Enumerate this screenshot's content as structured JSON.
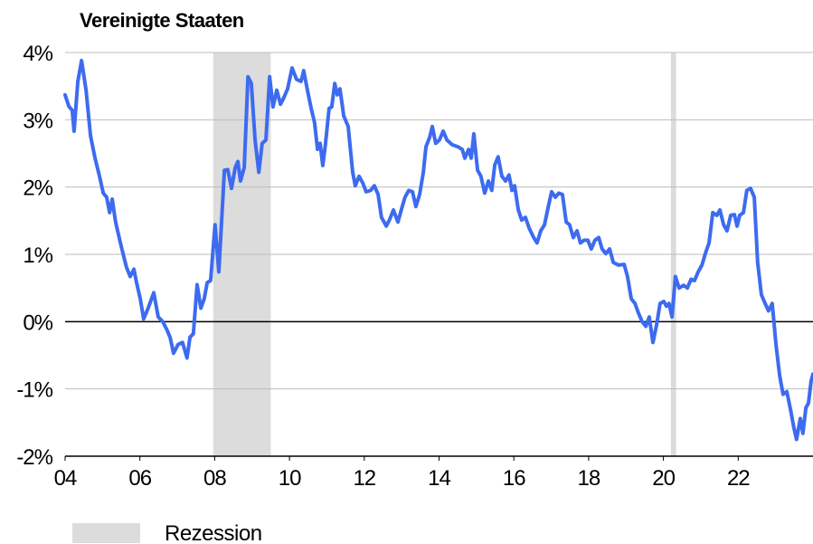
{
  "chart_data": {
    "type": "line",
    "title": "Vereinigte Staaten",
    "xlim": [
      2004,
      2024
    ],
    "ylim": [
      -2,
      4
    ],
    "xticks": [
      {
        "value": 2004,
        "label": "04"
      },
      {
        "value": 2006,
        "label": "06"
      },
      {
        "value": 2008,
        "label": "08"
      },
      {
        "value": 2010,
        "label": "10"
      },
      {
        "value": 2012,
        "label": "12"
      },
      {
        "value": 2014,
        "label": "14"
      },
      {
        "value": 2016,
        "label": "16"
      },
      {
        "value": 2018,
        "label": "18"
      },
      {
        "value": 2020,
        "label": "20"
      },
      {
        "value": 2022,
        "label": "22"
      }
    ],
    "yticks": [
      {
        "value": -2,
        "label": "-2%"
      },
      {
        "value": -1,
        "label": "-1%"
      },
      {
        "value": 0,
        "label": "0%"
      },
      {
        "value": 1,
        "label": "1%"
      },
      {
        "value": 2,
        "label": "2%"
      },
      {
        "value": 3,
        "label": "3%"
      },
      {
        "value": 4,
        "label": "4%"
      }
    ],
    "grid": true,
    "recession_label": "Rezession",
    "recession_color": "#dcdcdc",
    "recessions": [
      [
        2007.96,
        2009.5
      ],
      [
        2020.2,
        2020.34
      ]
    ],
    "series": [
      {
        "color": "#3d6bf0",
        "x": [
          2004.0,
          2004.1,
          2004.19,
          2004.24,
          2004.34,
          2004.44,
          2004.56,
          2004.68,
          2004.8,
          2004.92,
          2005.02,
          2005.11,
          2005.19,
          2005.26,
          2005.35,
          2005.5,
          2005.64,
          2005.74,
          2005.84,
          2005.91,
          2006.01,
          2006.1,
          2006.22,
          2006.37,
          2006.49,
          2006.61,
          2006.73,
          2006.81,
          2006.9,
          2007.02,
          2007.14,
          2007.26,
          2007.34,
          2007.43,
          2007.53,
          2007.63,
          2007.72,
          2007.8,
          2007.89,
          2008.01,
          2008.11,
          2008.26,
          2008.35,
          2008.45,
          2008.55,
          2008.62,
          2008.69,
          2008.79,
          2008.89,
          2008.98,
          2009.08,
          2009.18,
          2009.27,
          2009.37,
          2009.47,
          2009.56,
          2009.66,
          2009.76,
          2009.85,
          2009.95,
          2010.07,
          2010.19,
          2010.31,
          2010.38,
          2010.48,
          2010.58,
          2010.67,
          2010.75,
          2010.82,
          2010.89,
          2010.96,
          2011.06,
          2011.13,
          2011.21,
          2011.28,
          2011.35,
          2011.45,
          2011.57,
          2011.69,
          2011.76,
          2011.86,
          2011.96,
          2012.05,
          2012.17,
          2012.27,
          2012.37,
          2012.46,
          2012.59,
          2012.68,
          2012.78,
          2012.9,
          2013.0,
          2013.09,
          2013.19,
          2013.29,
          2013.38,
          2013.48,
          2013.58,
          2013.65,
          2013.75,
          2013.82,
          2013.91,
          2014.01,
          2014.11,
          2014.21,
          2014.35,
          2014.5,
          2014.62,
          2014.69,
          2014.79,
          2014.86,
          2014.93,
          2015.03,
          2015.12,
          2015.22,
          2015.32,
          2015.41,
          2015.49,
          2015.58,
          2015.68,
          2015.78,
          2015.87,
          2015.95,
          2016.02,
          2016.12,
          2016.21,
          2016.31,
          2016.41,
          2016.53,
          2016.62,
          2016.72,
          2016.82,
          2016.91,
          2017.01,
          2017.11,
          2017.2,
          2017.3,
          2017.4,
          2017.49,
          2017.59,
          2017.69,
          2017.78,
          2017.88,
          2017.98,
          2018.07,
          2018.17,
          2018.27,
          2018.36,
          2018.46,
          2018.56,
          2018.66,
          2018.8,
          2018.95,
          2019.04,
          2019.14,
          2019.24,
          2019.33,
          2019.43,
          2019.53,
          2019.62,
          2019.72,
          2019.82,
          2019.91,
          2020.01,
          2020.08,
          2020.15,
          2020.23,
          2020.32,
          2020.42,
          2020.54,
          2020.64,
          2020.74,
          2020.83,
          2020.93,
          2021.03,
          2021.12,
          2021.22,
          2021.32,
          2021.43,
          2021.51,
          2021.61,
          2021.7,
          2021.8,
          2021.9,
          2021.97,
          2022.04,
          2022.14,
          2022.23,
          2022.33,
          2022.43,
          2022.52,
          2022.62,
          2022.72,
          2022.81,
          2022.91,
          2023.01,
          2023.11,
          2023.2,
          2023.3,
          2023.4,
          2023.49,
          2023.56,
          2023.66,
          2023.73,
          2023.81,
          2023.88,
          2023.95,
          2024.0
        ],
        "values": [
          3.37,
          3.2,
          3.14,
          2.83,
          3.57,
          3.88,
          3.44,
          2.76,
          2.43,
          2.16,
          1.91,
          1.85,
          1.62,
          1.82,
          1.48,
          1.12,
          0.81,
          0.67,
          0.78,
          0.58,
          0.34,
          0.04,
          0.2,
          0.43,
          0.07,
          0.0,
          -0.13,
          -0.24,
          -0.47,
          -0.34,
          -0.31,
          -0.54,
          -0.23,
          -0.18,
          0.55,
          0.2,
          0.34,
          0.58,
          0.61,
          1.44,
          0.74,
          2.25,
          2.26,
          1.98,
          2.29,
          2.38,
          2.09,
          2.29,
          3.64,
          3.54,
          2.7,
          2.22,
          2.65,
          2.7,
          3.64,
          3.19,
          3.44,
          3.23,
          3.33,
          3.46,
          3.77,
          3.6,
          3.57,
          3.73,
          3.44,
          3.17,
          2.96,
          2.56,
          2.65,
          2.32,
          2.63,
          3.17,
          3.19,
          3.54,
          3.37,
          3.46,
          3.06,
          2.9,
          2.22,
          2.02,
          2.16,
          2.06,
          1.93,
          1.95,
          2.02,
          1.89,
          1.55,
          1.42,
          1.52,
          1.66,
          1.48,
          1.68,
          1.85,
          1.95,
          1.93,
          1.71,
          1.89,
          2.22,
          2.6,
          2.74,
          2.9,
          2.65,
          2.7,
          2.83,
          2.7,
          2.63,
          2.6,
          2.56,
          2.43,
          2.56,
          2.43,
          2.79,
          2.25,
          2.16,
          1.91,
          2.09,
          1.95,
          2.33,
          2.45,
          2.16,
          2.09,
          2.18,
          1.95,
          2.02,
          1.66,
          1.51,
          1.55,
          1.39,
          1.25,
          1.17,
          1.35,
          1.44,
          1.68,
          1.93,
          1.85,
          1.91,
          1.89,
          1.48,
          1.44,
          1.25,
          1.35,
          1.17,
          1.21,
          1.21,
          1.08,
          1.21,
          1.25,
          1.08,
          1.01,
          1.08,
          0.88,
          0.84,
          0.85,
          0.67,
          0.34,
          0.27,
          0.13,
          0.0,
          -0.07,
          0.07,
          -0.31,
          -0.04,
          0.27,
          0.3,
          0.23,
          0.27,
          0.07,
          0.67,
          0.5,
          0.54,
          0.5,
          0.63,
          0.61,
          0.74,
          0.84,
          1.01,
          1.17,
          1.62,
          1.58,
          1.66,
          1.44,
          1.35,
          1.58,
          1.59,
          1.42,
          1.58,
          1.62,
          1.95,
          1.98,
          1.85,
          0.88,
          0.4,
          0.27,
          0.16,
          0.27,
          -0.34,
          -0.81,
          -1.08,
          -1.04,
          -1.31,
          -1.58,
          -1.75,
          -1.44,
          -1.66,
          -1.28,
          -1.21,
          -0.88,
          -0.78
        ]
      }
    ]
  }
}
